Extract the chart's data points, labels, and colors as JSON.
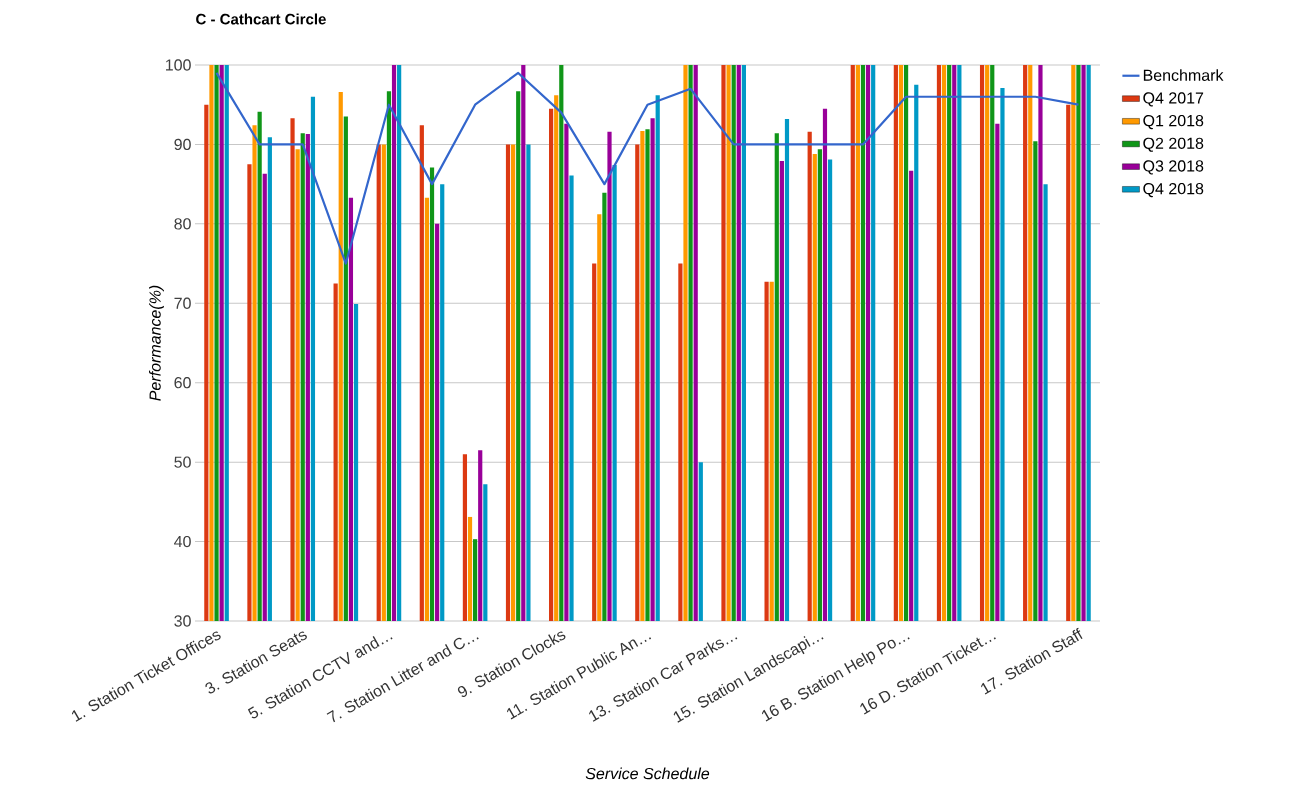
{
  "chart_data": {
    "type": "bar",
    "title": "C - Cathcart Circle",
    "xlabel": "Service Schedule",
    "ylabel": "Performance(%)",
    "categories": [
      "1. Station Ticket Offices",
      null,
      "3. Station Seats",
      null,
      "5. Station CCTV and…",
      null,
      "7. Station Litter and C…",
      null,
      "9. Station Clocks",
      null,
      "11. Station Public An…",
      null,
      "13. Station Car Parks…",
      null,
      "15. Station Landscapi…",
      null,
      "16 B. Station Help Po…",
      null,
      "16 D. Station Ticket…",
      null,
      "17. Station Staff"
    ],
    "series": [
      {
        "name": "Benchmark",
        "type": "line",
        "color": "#3366cc",
        "values": [
          99,
          90,
          90,
          75,
          95,
          85,
          95,
          99,
          94,
          85,
          95,
          97,
          90,
          90,
          90,
          90,
          96,
          96,
          96,
          96,
          95
        ]
      },
      {
        "name": "Q4 2017",
        "color": "#dc3912",
        "values": [
          95,
          87.5,
          93.3,
          72.5,
          90,
          92.4,
          51,
          90,
          94.5,
          75,
          90,
          75,
          100,
          72.7,
          91.6,
          100,
          100,
          100,
          100,
          100,
          95
        ]
      },
      {
        "name": "Q1 2018",
        "color": "#ff9900",
        "values": [
          100,
          92.4,
          89.4,
          96.6,
          90,
          83.3,
          43.1,
          90,
          96.2,
          81.2,
          91.7,
          100,
          100,
          72.7,
          88.8,
          100,
          100,
          100,
          100,
          100,
          100
        ]
      },
      {
        "name": "Q2 2018",
        "color": "#109618",
        "values": [
          100,
          94.1,
          91.4,
          93.5,
          96.7,
          87.1,
          40.3,
          96.7,
          100,
          83.9,
          91.9,
          100,
          100,
          91.4,
          89.4,
          100,
          100,
          100,
          100,
          90.4,
          100
        ]
      },
      {
        "name": "Q3 2018",
        "color": "#990099",
        "values": [
          100,
          86.3,
          91.3,
          83.3,
          100,
          80,
          51.5,
          100,
          92.6,
          91.6,
          93.3,
          100,
          100,
          87.9,
          94.5,
          100,
          86.7,
          100,
          92.6,
          100,
          100
        ]
      },
      {
        "name": "Q4 2018",
        "color": "#0099c6",
        "values": [
          100,
          90.9,
          96,
          69.9,
          100,
          85,
          47.2,
          90,
          86.1,
          87.4,
          96.2,
          50,
          100,
          93.2,
          88.1,
          100,
          97.5,
          100,
          97.1,
          85,
          100
        ]
      }
    ],
    "ylim": [
      30,
      100
    ],
    "yticks": [
      30,
      40,
      50,
      60,
      70,
      80,
      90,
      100
    ],
    "grid": "y",
    "legend": "right"
  }
}
